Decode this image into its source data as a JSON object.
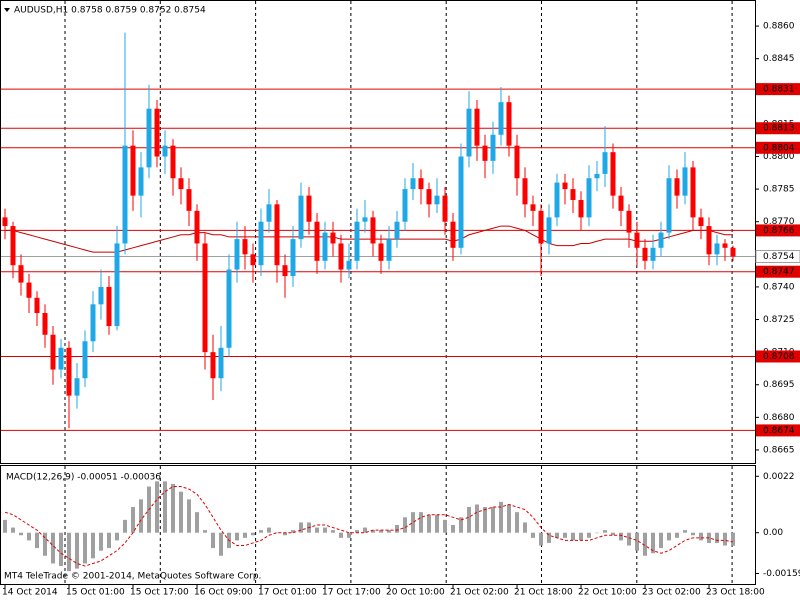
{
  "chart_data": [
    {
      "type": "candlestick",
      "title": "AUDUSD,H1  0.8758 0.8759 0.8752 0.8754",
      "categories": [
        "14 Oct 2014",
        null,
        null,
        null,
        null,
        null,
        null,
        null,
        "15 Oct 01:00",
        null,
        null,
        null,
        null,
        null,
        null,
        null,
        "15 Oct 17:00",
        null,
        null,
        null,
        null,
        null,
        null,
        null,
        "16 Oct 09:00",
        null,
        null,
        null,
        null,
        null,
        null,
        null,
        "17 Oct 01:00",
        null,
        null,
        null,
        null,
        null,
        null,
        null,
        "17 Oct 17:00",
        null,
        null,
        null,
        null,
        null,
        null,
        null,
        "20 Oct 10:00",
        null,
        null,
        null,
        null,
        null,
        null,
        null,
        "21 Oct 02:00",
        null,
        null,
        null,
        null,
        null,
        null,
        null,
        "21 Oct 18:00",
        null,
        null,
        null,
        null,
        null,
        null,
        null,
        "22 Oct 10:00",
        null,
        null,
        null,
        null,
        null,
        null,
        null,
        "23 Oct 02:00",
        null,
        null,
        null,
        null,
        null,
        null,
        null,
        "23 Oct 18:00",
        null,
        null,
        null
      ],
      "open": [
        0.8772,
        0.8768,
        0.875,
        0.8742,
        0.8735,
        0.8728,
        0.8718,
        0.8702,
        0.8712,
        0.869,
        0.8698,
        0.8715,
        0.8732,
        0.874,
        0.8722,
        0.876,
        0.8805,
        0.8782,
        0.8795,
        0.8822,
        0.88,
        0.8805,
        0.879,
        0.8785,
        0.8775,
        0.876,
        0.871,
        0.8698,
        0.8712,
        0.8748,
        0.8762,
        0.8755,
        0.875,
        0.877,
        0.8778,
        0.875,
        0.8745,
        0.8762,
        0.8782,
        0.877,
        0.8752,
        0.8765,
        0.876,
        0.8748,
        0.8752,
        0.877,
        0.8772,
        0.876,
        0.8752,
        0.8762,
        0.877,
        0.8785,
        0.879,
        0.8785,
        0.8778,
        0.8782,
        0.877,
        0.8758,
        0.88,
        0.8822,
        0.8805,
        0.8798,
        0.881,
        0.8825,
        0.8805,
        0.879,
        0.8778,
        0.8775,
        0.876,
        0.8772,
        0.8788,
        0.8785,
        0.878,
        0.8772,
        0.879,
        0.8792,
        0.8802,
        0.8782,
        0.8775,
        0.8765,
        0.8758,
        0.8752,
        0.8758,
        0.8765,
        0.879,
        0.8782,
        0.8795,
        0.8772,
        0.8768,
        0.8755,
        0.876,
        0.8758
      ],
      "high": [
        0.8776,
        0.877,
        0.8755,
        0.8746,
        0.8738,
        0.8732,
        0.8722,
        0.8716,
        0.8715,
        0.8705,
        0.872,
        0.8738,
        0.8748,
        0.8745,
        0.8768,
        0.8857,
        0.8812,
        0.8802,
        0.8833,
        0.8826,
        0.8812,
        0.8808,
        0.8795,
        0.879,
        0.8778,
        0.8765,
        0.8718,
        0.8722,
        0.8755,
        0.877,
        0.8768,
        0.876,
        0.8776,
        0.8785,
        0.878,
        0.8755,
        0.8768,
        0.8788,
        0.8786,
        0.8774,
        0.877,
        0.877,
        0.8764,
        0.876,
        0.8776,
        0.878,
        0.8775,
        0.8764,
        0.8768,
        0.8775,
        0.879,
        0.8797,
        0.8794,
        0.8788,
        0.879,
        0.8786,
        0.8774,
        0.8806,
        0.883,
        0.8826,
        0.881,
        0.8816,
        0.8832,
        0.8828,
        0.881,
        0.8795,
        0.8782,
        0.8778,
        0.8778,
        0.8792,
        0.8792,
        0.879,
        0.8784,
        0.8796,
        0.8798,
        0.8814,
        0.8806,
        0.8786,
        0.8778,
        0.877,
        0.8762,
        0.8764,
        0.877,
        0.8796,
        0.8794,
        0.8802,
        0.8798,
        0.8776,
        0.8772,
        0.8764,
        0.8762,
        0.8759
      ],
      "low": [
        0.8762,
        0.8744,
        0.8736,
        0.8728,
        0.8722,
        0.8712,
        0.8695,
        0.8698,
        0.8675,
        0.8684,
        0.8694,
        0.871,
        0.8725,
        0.8718,
        0.872,
        0.8755,
        0.8775,
        0.8772,
        0.879,
        0.8795,
        0.8792,
        0.8782,
        0.8778,
        0.8768,
        0.8752,
        0.8702,
        0.8688,
        0.8692,
        0.8708,
        0.8742,
        0.8748,
        0.8742,
        0.8745,
        0.8765,
        0.8742,
        0.8735,
        0.874,
        0.8758,
        0.8764,
        0.8746,
        0.8748,
        0.8754,
        0.8742,
        0.8744,
        0.8748,
        0.8765,
        0.8754,
        0.8746,
        0.8748,
        0.8758,
        0.8766,
        0.878,
        0.8778,
        0.8772,
        0.8774,
        0.8764,
        0.8752,
        0.8755,
        0.8795,
        0.8798,
        0.879,
        0.8792,
        0.8805,
        0.88,
        0.8782,
        0.8772,
        0.8768,
        0.8745,
        0.8755,
        0.8768,
        0.8778,
        0.8774,
        0.8766,
        0.8768,
        0.8784,
        0.8786,
        0.8776,
        0.8768,
        0.8758,
        0.875,
        0.8748,
        0.8748,
        0.8754,
        0.8762,
        0.8776,
        0.8778,
        0.8766,
        0.8762,
        0.875,
        0.875,
        0.8752,
        0.8752
      ],
      "close": [
        0.8768,
        0.875,
        0.8742,
        0.8735,
        0.8728,
        0.8718,
        0.8702,
        0.8712,
        0.869,
        0.8698,
        0.8715,
        0.8732,
        0.874,
        0.8722,
        0.876,
        0.8805,
        0.8782,
        0.8795,
        0.8822,
        0.88,
        0.8805,
        0.879,
        0.8785,
        0.8775,
        0.876,
        0.871,
        0.8698,
        0.8712,
        0.8748,
        0.8762,
        0.8755,
        0.875,
        0.877,
        0.8778,
        0.875,
        0.8745,
        0.8762,
        0.8782,
        0.877,
        0.8752,
        0.8765,
        0.876,
        0.8748,
        0.8752,
        0.877,
        0.8772,
        0.876,
        0.8752,
        0.8762,
        0.877,
        0.8785,
        0.879,
        0.8785,
        0.8778,
        0.8782,
        0.877,
        0.8758,
        0.88,
        0.8822,
        0.8805,
        0.8798,
        0.881,
        0.8825,
        0.8805,
        0.879,
        0.8778,
        0.8775,
        0.876,
        0.8772,
        0.8788,
        0.8785,
        0.878,
        0.8772,
        0.879,
        0.8792,
        0.8802,
        0.8782,
        0.8775,
        0.8765,
        0.8758,
        0.8752,
        0.8758,
        0.8765,
        0.879,
        0.8782,
        0.8795,
        0.8772,
        0.8768,
        0.8755,
        0.876,
        0.8758,
        0.8754
      ],
      "up_color": "#1fa8e6",
      "down_color": "#ff0000",
      "moving_average": {
        "color": "#c80000",
        "values": [
          0.8766,
          0.8766,
          0.8765,
          0.8764,
          0.8763,
          0.8762,
          0.8761,
          0.876,
          0.8759,
          0.8758,
          0.8757,
          0.8756,
          0.8756,
          0.8756,
          0.8756,
          0.8757,
          0.8758,
          0.8759,
          0.876,
          0.8761,
          0.8762,
          0.8763,
          0.8764,
          0.8764,
          0.8765,
          0.8765,
          0.8764,
          0.8764,
          0.8763,
          0.8763,
          0.8763,
          0.8763,
          0.8763,
          0.8763,
          0.8763,
          0.8763,
          0.8763,
          0.8763,
          0.8763,
          0.8763,
          0.8763,
          0.8763,
          0.8762,
          0.8762,
          0.8762,
          0.8762,
          0.8762,
          0.8762,
          0.8762,
          0.8762,
          0.8762,
          0.8762,
          0.8762,
          0.8762,
          0.8762,
          0.8762,
          0.8761,
          0.8762,
          0.8764,
          0.8765,
          0.8766,
          0.8767,
          0.8768,
          0.8768,
          0.8767,
          0.8766,
          0.8764,
          0.8762,
          0.876,
          0.8759,
          0.8759,
          0.8759,
          0.876,
          0.876,
          0.8761,
          0.8762,
          0.8762,
          0.8762,
          0.8762,
          0.8761,
          0.8761,
          0.8761,
          0.8762,
          0.8763,
          0.8764,
          0.8765,
          0.8766,
          0.8766,
          0.8766,
          0.8765,
          0.8764,
          0.8764
        ]
      },
      "levels": [
        0.8831,
        0.8813,
        0.8804,
        0.8766,
        0.8747,
        0.8708,
        0.8674
      ],
      "level_color": "#e00000",
      "current_price": 0.8754,
      "ylim": [
        0.8659,
        0.8872
      ],
      "yticks": [
        {
          "value": 0.886,
          "label": "0.8860"
        },
        0.8845,
        0.8815,
        {
          "value": 0.88,
          "label": "0.8800"
        },
        0.8785,
        {
          "value": 0.877,
          "label": "0.8770"
        },
        0.8755,
        {
          "value": 0.874,
          "label": "0.8740"
        },
        0.8725,
        {
          "value": 0.871,
          "label": "0.8710"
        },
        0.8695,
        {
          "value": 0.868,
          "label": "0.8680"
        },
        0.8665
      ]
    },
    {
      "type": "macd",
      "title": "MACD(12,26,9) -0.00051 -0.00036",
      "series": [
        {
          "color": "#a0a0a0",
          "values": [
            0.0005,
            0.0002,
            -0.0001,
            -0.0003,
            -0.0006,
            -0.0009,
            -0.0012,
            -0.0013,
            -0.0015,
            -0.0014,
            -0.0012,
            -0.001,
            -0.0007,
            -0.0006,
            -0.0003,
            0.0005,
            0.001,
            0.0013,
            0.0018,
            0.002,
            0.002,
            0.0019,
            0.0016,
            0.0013,
            0.0008,
            0.0001,
            -0.0006,
            -0.0009,
            -0.0006,
            -0.0003,
            -0.0002,
            -0.0001,
            0.0001,
            0.0002,
            0,
            -0.0001,
            0.0001,
            0.0004,
            0.0004,
            0.0002,
            0.0002,
            0.0001,
            -0.0002,
            -0.0002,
            0.0001,
            0.0002,
            0.0001,
            0.0001,
            0.0001,
            0.0003,
            0.0006,
            0.0008,
            0.0008,
            0.0007,
            0.0007,
            0.0005,
            0.0003,
            0.0006,
            0.001,
            0.0011,
            0.001,
            0.001,
            0.0012,
            0.0011,
            0.0008,
            0.0004,
            -0.0002,
            -0.0005,
            -0.0004,
            -0.0002,
            -0.0002,
            -0.0003,
            -0.0003,
            -0.0002,
            0,
            0.0001,
            -0.0001,
            -0.0003,
            -0.0005,
            -0.0007,
            -0.0009,
            -0.0008,
            -0.0006,
            -0.0003,
            -0.0002,
            0.0001,
            -0.0001,
            -0.0003,
            -0.0004,
            -0.0004,
            -0.0005,
            -0.00051
          ]
        },
        {
          "color": "#e00000",
          "values": [
            0.0008,
            0.0007,
            0.0005,
            0.0003,
            0.0001,
            -0.0002,
            -0.0005,
            -0.0008,
            -0.001,
            -0.0012,
            -0.0013,
            -0.0012,
            -0.0011,
            -0.0009,
            -0.0007,
            -0.0004,
            0,
            0.0005,
            0.0009,
            0.0013,
            0.0016,
            0.0018,
            0.0018,
            0.0017,
            0.0015,
            0.0011,
            0.0006,
            0.0001,
            -0.0003,
            -0.0005,
            -0.0005,
            -0.0004,
            -0.0003,
            -0.0001,
            0,
            0,
            0,
            0.0001,
            0.0002,
            0.0003,
            0.0003,
            0.0002,
            0.0001,
            0,
            0,
            0,
            0.0001,
            0.0001,
            0.0001,
            0.0001,
            0.0002,
            0.0004,
            0.0006,
            0.0007,
            0.0007,
            0.0007,
            0.0006,
            0.0005,
            0.0006,
            0.0008,
            0.0009,
            0.001,
            0.001,
            0.0011,
            0.001,
            0.0009,
            0.0006,
            0.0002,
            -0.0001,
            -0.0002,
            -0.0003,
            -0.0003,
            -0.0003,
            -0.0003,
            -0.0002,
            -0.0001,
            -0.0001,
            -0.0001,
            -0.0002,
            -0.0003,
            -0.0005,
            -0.0007,
            -0.0008,
            -0.0007,
            -0.0005,
            -0.0003,
            -0.0002,
            -0.0002,
            -0.0002,
            -0.0003,
            -0.0003,
            -0.00036
          ]
        }
      ],
      "ylim": [
        -0.002,
        0.0026
      ],
      "yticks": [
        0.0022,
        {
          "value": 0,
          "label": "0.00"
        },
        -0.00159
      ],
      "footer": "MT4 TeleTrade © 2001-2014, MetaQuotes Software Corp."
    }
  ]
}
